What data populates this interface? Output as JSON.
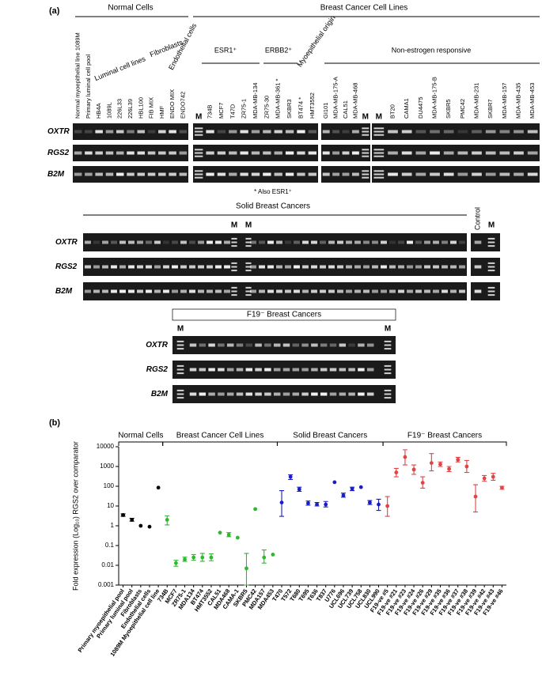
{
  "figure_a": {
    "label": "(a)",
    "normal_cells": "Normal Cells",
    "cancer_lines": "Breast Cancer Cell Lines",
    "luminal": "Luminal cell lines",
    "fibroblasts": "Fibroblasts",
    "endothelial": "Endothelial cells",
    "esr1": "ESR1⁺",
    "erbb2": "ERBB2⁺",
    "myoepithelial": "Myoepithelial origin",
    "non_estrogen": "Non-estrogen responsive",
    "note": "* Also ESR1⁺",
    "gel1": {
      "rows": [
        "OXTR",
        "RGS2",
        "B2M"
      ],
      "panels": [
        {
          "lanes": [
            "Normal myoepithelial line 1089M",
            "Primary luminal cell pool",
            "HB4A",
            "1089L",
            "226L33",
            "226L39",
            "HBL100",
            "FIB MIX",
            "HMF",
            "ENDO MIX",
            "ENDO742"
          ]
        },
        {
          "marker_left": "M",
          "lanes": [
            "734B",
            "MCF7",
            "T47D",
            "ZR75-1",
            "MDA-MB-134",
            "ZR75-30",
            "MDA-MB-361 *",
            "SKBR3",
            "BT474 *",
            "HMT3552"
          ]
        },
        {
          "lanes": [
            "GI101",
            "MDA-MB-175-A",
            "CAL51",
            "MDA-MB-468"
          ],
          "marker_right": "M"
        },
        {
          "marker_left": "M",
          "lanes": [
            "BT20",
            "CAMA1",
            "DU4475",
            "MDA-MB-175-B",
            "SKBR5",
            "PMC42",
            "MDA-MB-231",
            "SKBR7",
            "MDA-MB-157",
            "MDA-MB-435",
            "MDA-MB-453"
          ]
        }
      ]
    },
    "gel2": {
      "title": "Solid Breast Cancers",
      "markers": [
        "M",
        "M"
      ],
      "control": "Control",
      "control_marker": "M",
      "rows": [
        "OXTR",
        "RGS2",
        "B2M"
      ]
    },
    "gel3": {
      "title": "F19⁻ Breast Cancers",
      "markers": [
        "M",
        "M"
      ],
      "rows": [
        "OXTR",
        "RGS2",
        "B2M"
      ]
    }
  },
  "chart_data": {
    "type": "scatter",
    "label": "(b)",
    "ylabel": "Fold expression (Log₁₀) RGS2 over comparator",
    "yscale": "log",
    "ylim": [
      0.001,
      10000
    ],
    "yticks": [
      0.001,
      0.01,
      0.1,
      1,
      10,
      100,
      1000,
      10000
    ],
    "categories": [
      "Primary myoepithelial pool",
      "Primary luminal pool",
      "Fibroblasts",
      "Endothelial cells",
      "1089M Myoepithelial cell line",
      "734B",
      "MCF7",
      "ZR75-1",
      "MDA134",
      "BT474",
      "HMT3552",
      "CAL51",
      "MDA468",
      "CAMA-1",
      "SKBR5",
      "PMC42",
      "MDA157",
      "MDA453",
      "T470",
      "T572",
      "T680",
      "T695",
      "T636",
      "T837",
      "U776",
      "UCL696",
      "UCL739",
      "UCL758",
      "UCL830",
      "UCL990",
      "F19-ve #5",
      "F19-ve #21",
      "F19-ve #23",
      "F19-ve #24",
      "F19-ve #26",
      "F19-ve #29",
      "F19-ve #35",
      "F19-ve #36",
      "F19-ve #37",
      "F19-ve #38",
      "F19-ve #39",
      "F19-ve #42",
      "F19-ve #43",
      "F19-ve #46"
    ],
    "series": [
      {
        "name": "Normal Cells",
        "color": "#000000",
        "values": [
          3.5,
          2,
          1,
          0.9,
          85,
          null,
          null,
          null,
          null,
          null,
          null,
          null,
          null,
          null,
          null,
          null,
          null,
          null,
          null,
          null,
          null,
          null,
          null,
          null,
          null,
          null,
          null,
          null,
          null,
          null,
          null,
          null,
          null,
          null,
          null,
          null,
          null,
          null,
          null,
          null,
          null,
          null,
          null,
          null
        ],
        "error_low": [
          3,
          1.7,
          null,
          null,
          null,
          null,
          null,
          null,
          null,
          null,
          null,
          null,
          null,
          null,
          null,
          null,
          null,
          null,
          null,
          null,
          null,
          null,
          null,
          null,
          null,
          null,
          null,
          null,
          null,
          null,
          null,
          null,
          null,
          null,
          null,
          null,
          null,
          null,
          null,
          null,
          null,
          null,
          null,
          null
        ],
        "error_high": [
          4,
          2.4,
          null,
          null,
          null,
          null,
          null,
          null,
          null,
          null,
          null,
          null,
          null,
          null,
          null,
          null,
          null,
          null,
          null,
          null,
          null,
          null,
          null,
          null,
          null,
          null,
          null,
          null,
          null,
          null,
          null,
          null,
          null,
          null,
          null,
          null,
          null,
          null,
          null,
          null,
          null,
          null,
          null,
          null
        ]
      },
      {
        "name": "Breast Cancer Cell Lines",
        "color": "#2eb82e",
        "values": [
          null,
          null,
          null,
          null,
          null,
          2,
          0.013,
          0.02,
          0.025,
          0.025,
          0.025,
          0.45,
          0.35,
          0.25,
          0.007,
          7,
          0.025,
          0.035,
          null,
          null,
          null,
          null,
          null,
          null,
          null,
          null,
          null,
          null,
          null,
          null,
          null,
          null,
          null,
          null,
          null,
          null,
          null,
          null,
          null,
          null,
          null,
          null,
          null,
          null
        ],
        "error_low": [
          null,
          null,
          null,
          null,
          null,
          1.1,
          0.009,
          0.016,
          0.018,
          0.016,
          0.017,
          null,
          0.28,
          null,
          0.001,
          null,
          0.013,
          null,
          null,
          null,
          null,
          null,
          null,
          null,
          null,
          null,
          null,
          null,
          null,
          null,
          null,
          null,
          null,
          null,
          null,
          null,
          null,
          null,
          null,
          null,
          null,
          null,
          null,
          null
        ],
        "error_high": [
          null,
          null,
          null,
          null,
          null,
          3.2,
          0.018,
          0.026,
          0.035,
          0.04,
          0.038,
          null,
          0.45,
          null,
          0.04,
          null,
          0.06,
          null,
          null,
          null,
          null,
          null,
          null,
          null,
          null,
          null,
          null,
          null,
          null,
          null,
          null,
          null,
          null,
          null,
          null,
          null,
          null,
          null,
          null,
          null,
          null,
          null,
          null,
          null
        ]
      },
      {
        "name": "Solid Breast Cancers",
        "color": "#1c1cc4",
        "values": [
          null,
          null,
          null,
          null,
          null,
          null,
          null,
          null,
          null,
          null,
          null,
          null,
          null,
          null,
          null,
          null,
          null,
          null,
          15,
          300,
          70,
          14,
          12,
          12,
          160,
          35,
          75,
          90,
          15,
          12,
          null,
          null,
          null,
          null,
          null,
          null,
          null,
          null,
          null,
          null,
          null,
          null,
          null,
          null
        ],
        "error_low": [
          null,
          null,
          null,
          null,
          null,
          null,
          null,
          null,
          null,
          null,
          null,
          null,
          null,
          null,
          null,
          null,
          null,
          null,
          3,
          220,
          55,
          11,
          10,
          9,
          null,
          28,
          60,
          null,
          12,
          6,
          null,
          null,
          null,
          null,
          null,
          null,
          null,
          null,
          null,
          null,
          null,
          null,
          null,
          null
        ],
        "error_high": [
          null,
          null,
          null,
          null,
          null,
          null,
          null,
          null,
          null,
          null,
          null,
          null,
          null,
          null,
          null,
          null,
          null,
          null,
          60,
          380,
          90,
          18,
          15,
          17,
          null,
          45,
          90,
          null,
          19,
          22,
          null,
          null,
          null,
          null,
          null,
          null,
          null,
          null,
          null,
          null,
          null,
          null,
          null,
          null
        ]
      },
      {
        "name": "F19⁻ Breast Cancers",
        "color": "#e04444",
        "values": [
          null,
          null,
          null,
          null,
          null,
          null,
          null,
          null,
          null,
          null,
          null,
          null,
          null,
          null,
          null,
          null,
          null,
          null,
          null,
          null,
          null,
          null,
          null,
          null,
          null,
          null,
          null,
          null,
          null,
          null,
          10,
          500,
          3000,
          700,
          150,
          1500,
          1300,
          750,
          2200,
          1000,
          30,
          250,
          300,
          85
        ],
        "error_low": [
          null,
          null,
          null,
          null,
          null,
          null,
          null,
          null,
          null,
          null,
          null,
          null,
          null,
          null,
          null,
          null,
          null,
          null,
          null,
          null,
          null,
          null,
          null,
          null,
          null,
          null,
          null,
          null,
          null,
          null,
          3,
          300,
          1200,
          400,
          80,
          600,
          1000,
          550,
          1700,
          500,
          5,
          180,
          200,
          70
        ],
        "error_high": [
          null,
          null,
          null,
          null,
          null,
          null,
          null,
          null,
          null,
          null,
          null,
          null,
          null,
          null,
          null,
          null,
          null,
          null,
          null,
          null,
          null,
          null,
          null,
          null,
          null,
          null,
          null,
          null,
          null,
          null,
          30,
          800,
          7000,
          1200,
          300,
          4500,
          1700,
          1000,
          2900,
          2000,
          120,
          350,
          450,
          100
        ]
      }
    ]
  }
}
